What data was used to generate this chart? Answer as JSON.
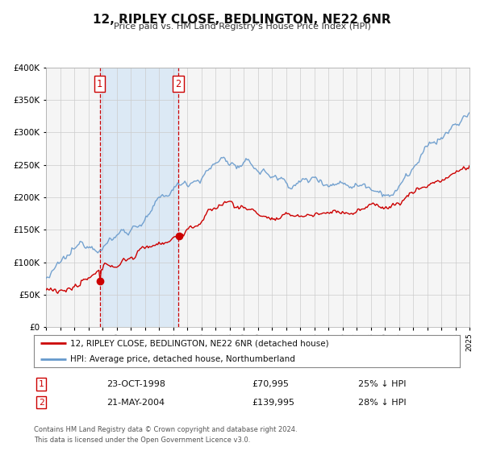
{
  "title": "12, RIPLEY CLOSE, BEDLINGTON, NE22 6NR",
  "subtitle": "Price paid vs. HM Land Registry's House Price Index (HPI)",
  "legend_red": "12, RIPLEY CLOSE, BEDLINGTON, NE22 6NR (detached house)",
  "legend_blue": "HPI: Average price, detached house, Northumberland",
  "transaction1_date": "23-OCT-1998",
  "transaction1_price": "£70,995",
  "transaction1_hpi": "25% ↓ HPI",
  "transaction1_year": 1998.8,
  "transaction1_value": 70995,
  "transaction2_date": "21-MAY-2004",
  "transaction2_price": "£139,995",
  "transaction2_hpi": "28% ↓ HPI",
  "transaction2_year": 2004.38,
  "transaction2_value": 139995,
  "footer1": "Contains HM Land Registry data © Crown copyright and database right 2024.",
  "footer2": "This data is licensed under the Open Government Licence v3.0.",
  "ylim": [
    0,
    400000
  ],
  "xlim_start": 1995,
  "xlim_end": 2025,
  "background_color": "#ffffff",
  "plot_bg_color": "#f5f5f5",
  "shade_color": "#dce9f5",
  "grid_color": "#cccccc",
  "red_color": "#cc0000",
  "blue_color": "#6699cc",
  "marker_color": "#cc0000",
  "title_fontsize": 11,
  "subtitle_fontsize": 8
}
